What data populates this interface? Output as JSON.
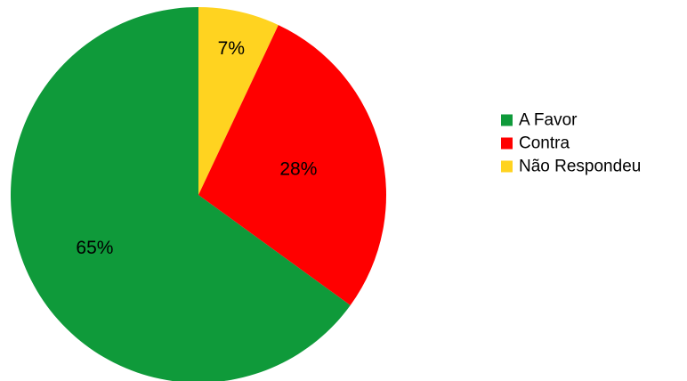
{
  "chart_data": {
    "type": "pie",
    "categories": [
      "A Favor",
      "Contra",
      "Não Respondeu"
    ],
    "values": [
      65,
      28,
      7
    ],
    "labels": [
      "65%",
      "28%",
      "7%"
    ],
    "colors": [
      "#0f9a3a",
      "#ff0000",
      "#ffd320"
    ],
    "legend_position": "right",
    "start_angle": "top, clockwise, starting with Não Respondeu"
  }
}
